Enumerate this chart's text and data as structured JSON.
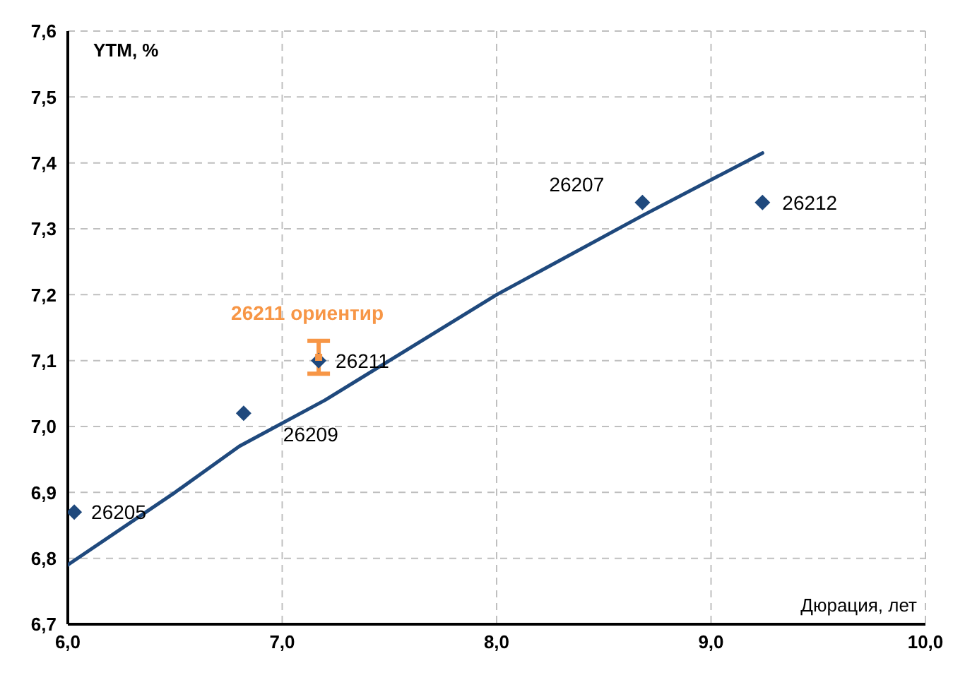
{
  "chart_data": {
    "type": "scatter",
    "xlabel": "Дюрация, лет",
    "ylabel": "YTM, %",
    "xlim": [
      6.0,
      10.0
    ],
    "xticks": [
      {
        "value": 6,
        "label": "6,0"
      },
      {
        "value": 7,
        "label": "7,0"
      },
      {
        "value": 8,
        "label": "8,0"
      },
      {
        "value": 9,
        "label": "9,0"
      },
      {
        "value": 10,
        "label": "10,0"
      }
    ],
    "ylim": [
      6.7,
      7.6
    ],
    "yticks": [
      {
        "value": 6.7,
        "label": "6,7"
      },
      {
        "value": 6.8,
        "label": "6,8"
      },
      {
        "value": 6.9,
        "label": "6,9"
      },
      {
        "value": 7.0,
        "label": "7,0"
      },
      {
        "value": 7.1,
        "label": "7,1"
      },
      {
        "value": 7.2,
        "label": "7,2"
      },
      {
        "value": 7.3,
        "label": "7,3"
      },
      {
        "value": 7.4,
        "label": "7,4"
      },
      {
        "value": 7.5,
        "label": "7,5"
      },
      {
        "value": 7.6,
        "label": "7,6"
      }
    ],
    "grid": true,
    "legend": false,
    "marker": "diamond",
    "series": [
      {
        "color": "#1f497d",
        "x": [
          6.03,
          6.82,
          7.17,
          8.68,
          9.24
        ],
        "values": [
          6.87,
          7.02,
          7.1,
          7.34,
          7.34
        ]
      },
      {
        "type": "line",
        "color": "#1f497d",
        "marker": "none",
        "line_style": "solid",
        "x": [
          6.0,
          6.5,
          6.8,
          7.2,
          7.5,
          8.0,
          8.68,
          9.24
        ],
        "values": [
          6.79,
          6.9,
          6.97,
          7.04,
          7.1,
          7.2,
          7.32,
          7.415
        ]
      },
      {
        "name": "26211 ориентир",
        "color": "#f79646",
        "marker": "square",
        "x": [
          7.17
        ],
        "values": [
          7.105
        ],
        "errors": [
          [
            7.08,
            7.13
          ]
        ]
      }
    ],
    "annotations": [
      {
        "text": "26205",
        "x": 6.03,
        "y": 6.87
      },
      {
        "text": "26209",
        "x": 6.82,
        "y": 7.02
      },
      {
        "text": "26211",
        "x": 7.17,
        "y": 7.1
      },
      {
        "text": "26207",
        "x": 8.68,
        "y": 7.34
      },
      {
        "text": "26212",
        "x": 9.24,
        "y": 7.34
      }
    ]
  }
}
